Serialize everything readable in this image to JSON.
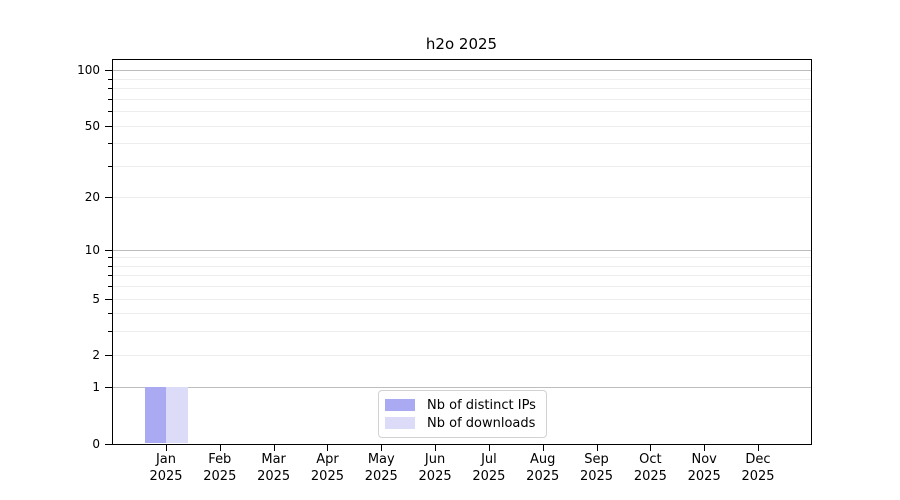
{
  "window": {
    "background": "#ffffff"
  },
  "chart_data": {
    "type": "bar",
    "title": "h2o 2025",
    "categories": [
      "Jan",
      "Feb",
      "Mar",
      "Apr",
      "May",
      "Jun",
      "Jul",
      "Aug",
      "Sep",
      "Oct",
      "Nov",
      "Dec"
    ],
    "category_sublabel": "2025",
    "series": [
      {
        "name": "Nb of distinct IPs",
        "color": "#aaaaf2",
        "values": [
          1,
          0,
          0,
          0,
          0,
          0,
          0,
          0,
          0,
          0,
          0,
          0
        ]
      },
      {
        "name": "Nb of downloads",
        "color": "#dcdcf8",
        "values": [
          1,
          0,
          0,
          0,
          0,
          0,
          0,
          0,
          0,
          0,
          0,
          0
        ]
      }
    ],
    "yscale": "log10(1+x)",
    "ylim": [
      0,
      100
    ],
    "ytick_values": [
      0,
      1,
      2,
      5,
      10,
      20,
      50,
      100
    ],
    "ytick_labels": [
      "0",
      "1",
      "2",
      "5",
      "10",
      "20",
      "50",
      "100"
    ],
    "ytick_minor_values": [
      3,
      4,
      6,
      7,
      8,
      9,
      30,
      40,
      60,
      70,
      80,
      90
    ],
    "grid": {
      "decade_values": [
        1,
        10,
        100
      ],
      "light_values": [
        2,
        3,
        4,
        5,
        6,
        7,
        8,
        9,
        20,
        30,
        40,
        50,
        60,
        70,
        80,
        90
      ],
      "decade_color": "#bdbdbd",
      "light_color": "#ededed"
    },
    "legend": {
      "position": "lower center",
      "entries": [
        "Nb of distinct IPs",
        "Nb of downloads"
      ]
    },
    "colors": {
      "axis": "#000000",
      "text": "#000000",
      "background": "#ffffff"
    }
  }
}
